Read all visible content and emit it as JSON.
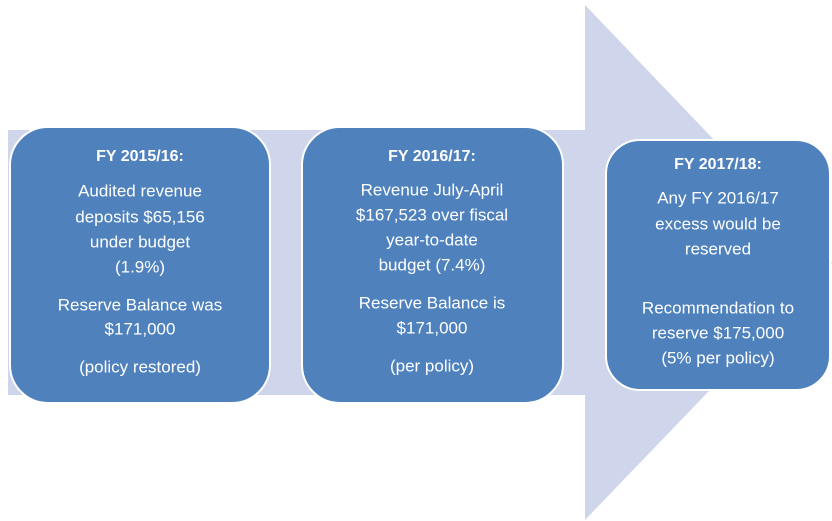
{
  "boxes": [
    {
      "title": "FY 2015/16:",
      "lines": [
        "Audited revenue",
        "deposits $65,156",
        "under budget",
        "(1.9%)",
        "Reserve Balance was",
        "$171,000",
        "(policy restored)"
      ]
    },
    {
      "title": "FY 2016/17:",
      "lines": [
        "Revenue July-April",
        "$167,523 over fiscal",
        "year-to-date",
        "budget (7.4%)",
        "Reserve Balance is",
        "$171,000",
        "(per policy)"
      ]
    },
    {
      "title": "FY 2017/18:",
      "lines": [
        "Any FY 2016/17",
        "excess would be",
        "reserved",
        "Recommendation to",
        "reserve $175,000",
        "(5% per policy)"
      ]
    }
  ]
}
